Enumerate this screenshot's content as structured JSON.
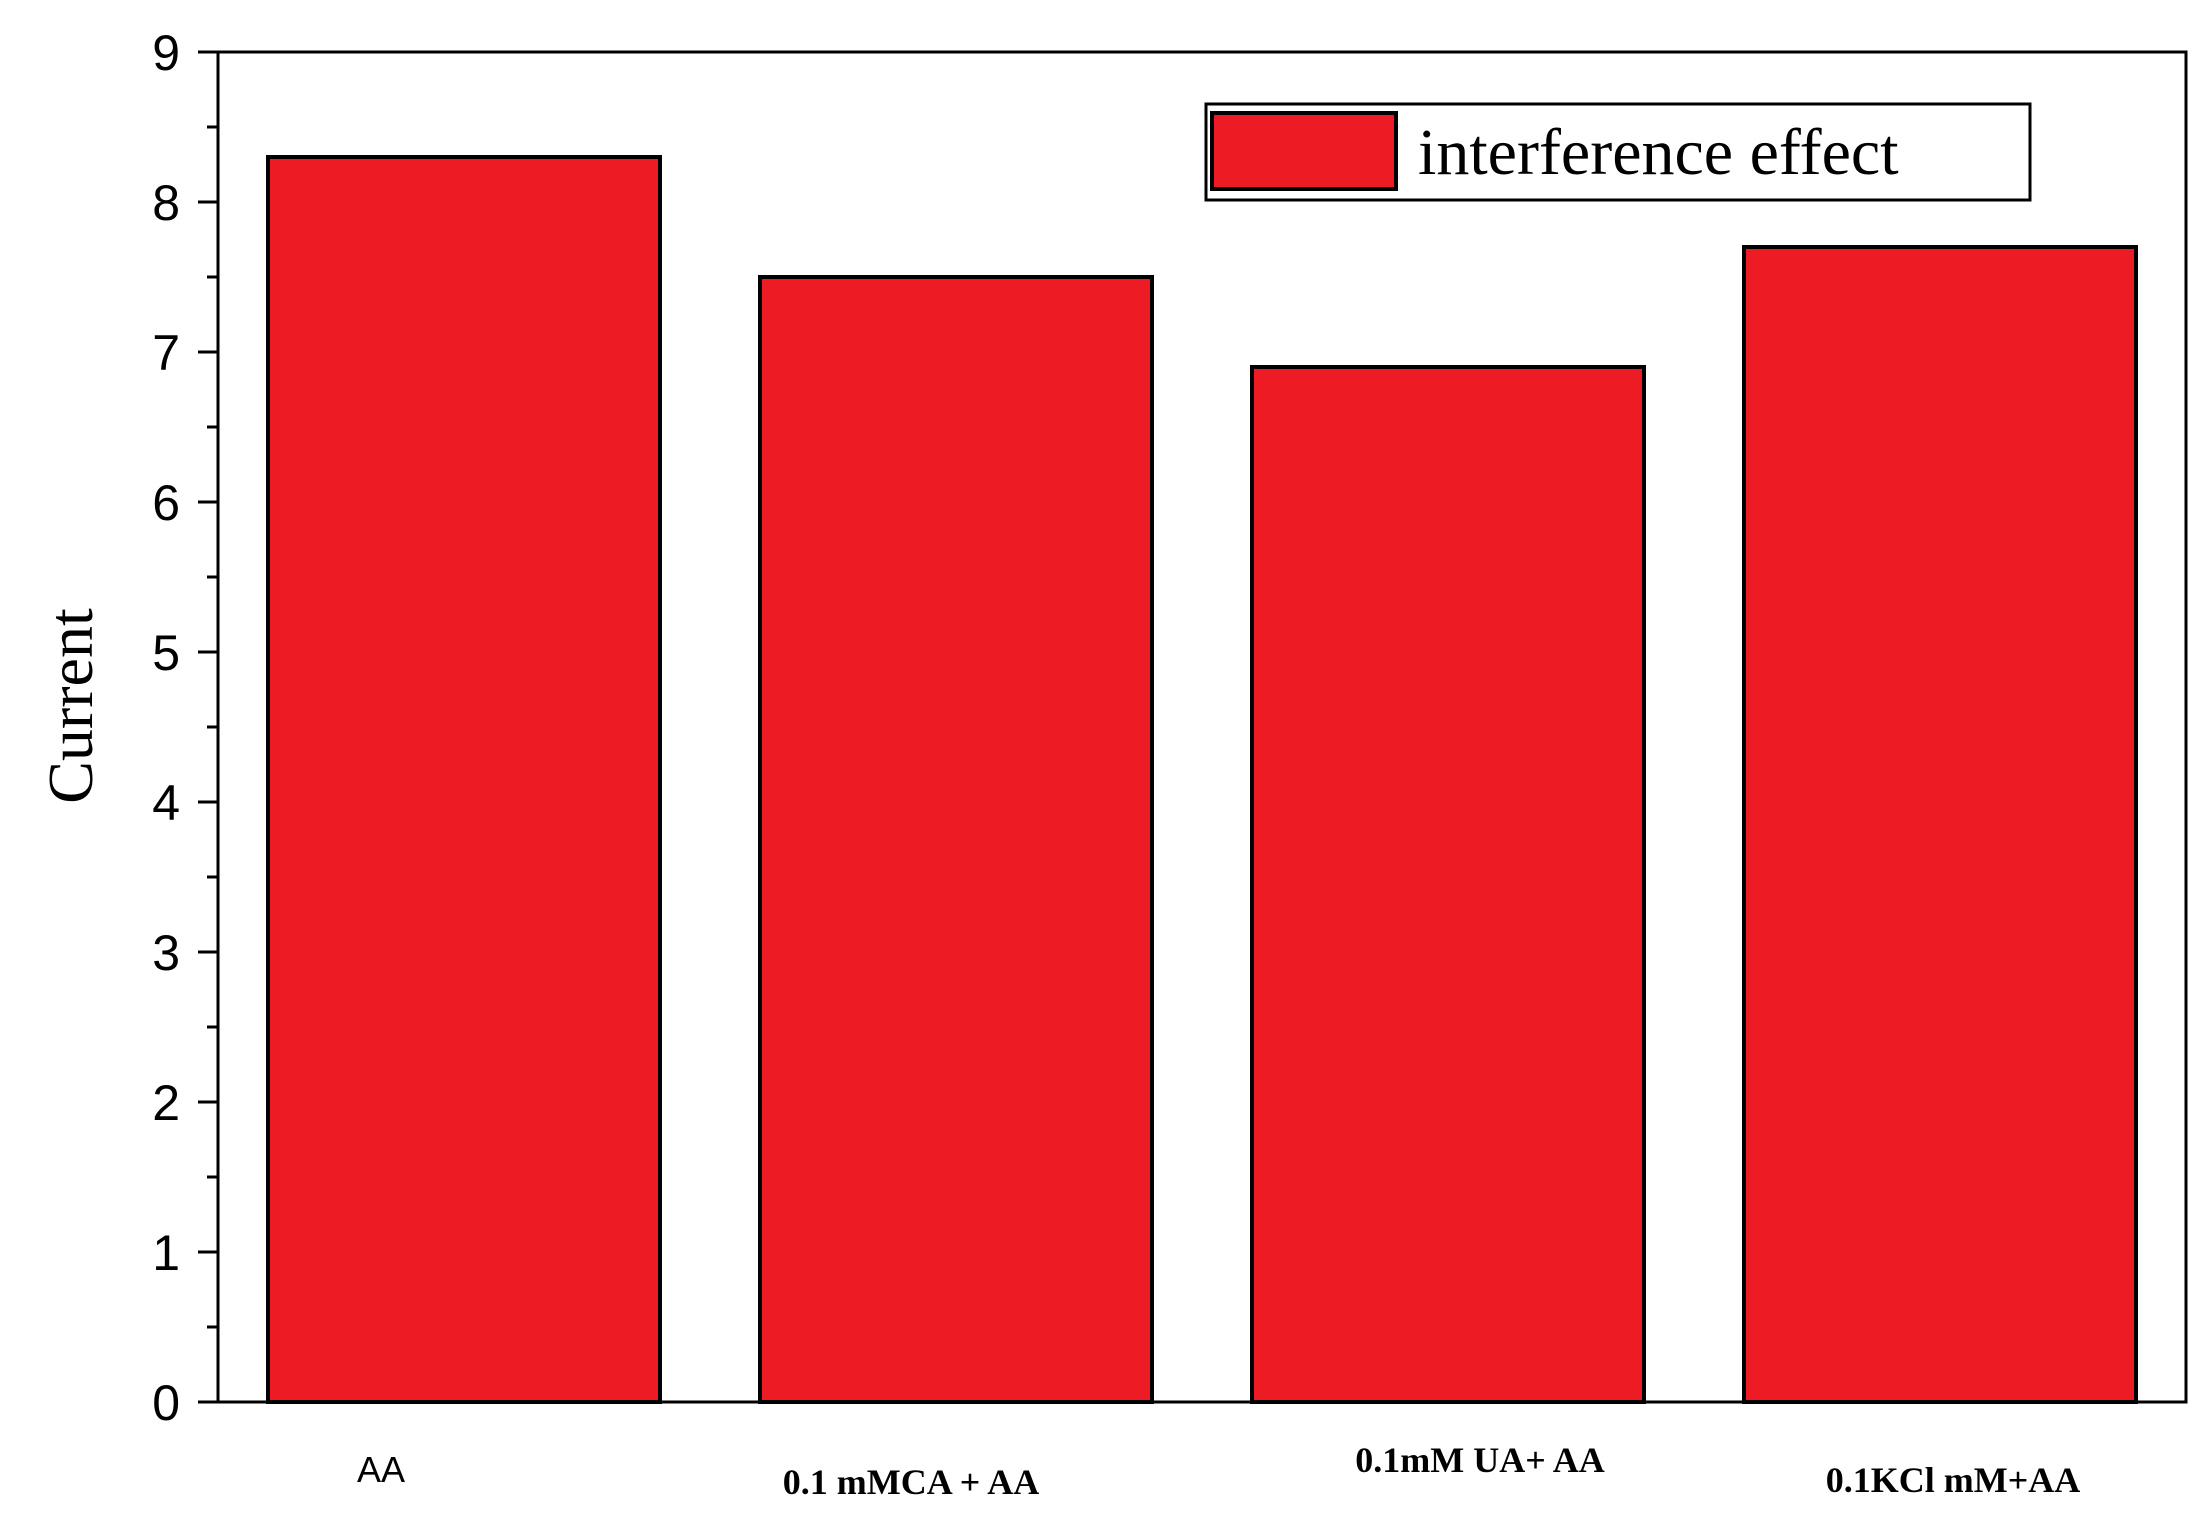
{
  "chart_data": {
    "type": "bar",
    "ylabel": "Current",
    "xlabel": "",
    "ylim": [
      0,
      9
    ],
    "yticks": [
      "0",
      "1",
      "2",
      "3",
      "4",
      "5",
      "6",
      "7",
      "8",
      "9"
    ],
    "categories": [
      "AA",
      "0.1 mMCA + AA",
      "0.1mM UA+ AA",
      "0.1KCl mM+AA"
    ],
    "series": [
      {
        "name": "interference effect",
        "values": [
          8.3,
          7.5,
          6.9,
          7.7
        ]
      }
    ],
    "bar_color": "#ED1C24",
    "legend_position": "top-right",
    "grid": false
  }
}
